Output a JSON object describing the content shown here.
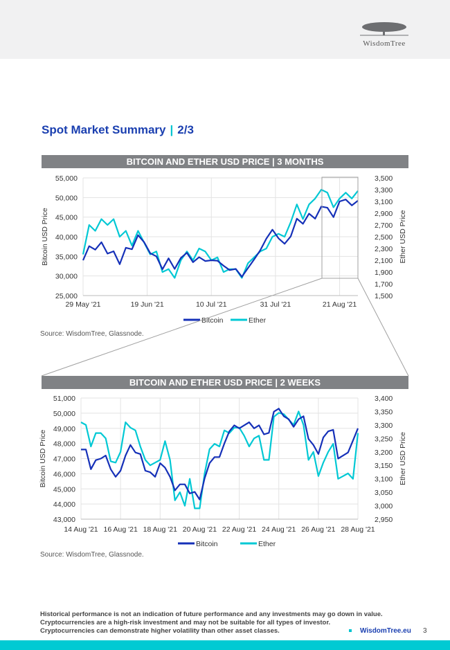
{
  "header": {
    "logo_text": "WisdomTree"
  },
  "page_title": {
    "main": "Spot Market Summary",
    "sep": "|",
    "part": "2/3"
  },
  "colors": {
    "bitcoin": "#1530b8",
    "ether": "#00c8d4",
    "accent": "#1a3fb0"
  },
  "chart_data": [
    {
      "type": "line",
      "title": "BITCOIN AND ETHER USD PRICE  |  3 MONTHS",
      "ylabel": "Bitcoin USD Price",
      "y2label": "Ether USD Price",
      "ylim": [
        25000,
        55000
      ],
      "y2lim": [
        1500,
        3500
      ],
      "yticks": [
        "55,000",
        "50,000",
        "45,000",
        "40,000",
        "35,000",
        "30,000",
        "25,000"
      ],
      "y2ticks": [
        "3,500",
        "3,300",
        "3,100",
        "2,900",
        "2,700",
        "2,500",
        "2,300",
        "2,100",
        "1,900",
        "1,700",
        "1,500"
      ],
      "xticks": [
        {
          "label": "29 May '21",
          "day": 0
        },
        {
          "label": "19 Jun '21",
          "day": 21
        },
        {
          "label": "10 Jul '21",
          "day": 42
        },
        {
          "label": "31 Jul '21",
          "day": 63
        },
        {
          "label": "21 Aug '21",
          "day": 84
        }
      ],
      "x_start": "29 May '21",
      "step_days": 2,
      "x_max_days": 90,
      "grid": true,
      "legend": "bottom",
      "series": [
        {
          "name": "Bitcoin",
          "axis": "left",
          "values": [
            34000,
            37600,
            36700,
            38600,
            35700,
            36300,
            33000,
            37200,
            36800,
            40400,
            38600,
            35800,
            35000,
            31700,
            34500,
            31800,
            34600,
            35900,
            33500,
            34800,
            33800,
            34000,
            33900,
            32600,
            31500,
            31800,
            29800,
            32000,
            34200,
            36500,
            39500,
            41800,
            39600,
            38200,
            40100,
            44600,
            43300,
            45900,
            44600,
            47700,
            47400,
            45000,
            49000,
            49500,
            48000,
            49200
          ]
        },
        {
          "name": "Ether",
          "axis": "right",
          "values": [
            2200,
            2700,
            2600,
            2800,
            2700,
            2800,
            2500,
            2600,
            2350,
            2600,
            2400,
            2200,
            2250,
            1900,
            1950,
            1800,
            2100,
            2250,
            2100,
            2300,
            2250,
            2100,
            2150,
            1900,
            1950,
            1950,
            1800,
            2050,
            2150,
            2250,
            2300,
            2500,
            2550,
            2500,
            2750,
            3050,
            2800,
            3050,
            3150,
            3300,
            3250,
            3000,
            3150,
            3250,
            3150,
            3280
          ]
        }
      ]
    },
    {
      "type": "line",
      "title": "BITCOIN AND ETHER USD PRICE  |  2 WEEKS",
      "ylabel": "Bitcoin USD Price",
      "y2label": "Ether USD Price",
      "ylim": [
        43000,
        51000
      ],
      "y2lim": [
        2950,
        3400
      ],
      "yticks": [
        "51,000",
        "50,000",
        "49,000",
        "48,000",
        "47,000",
        "46,000",
        "45,000",
        "44,000",
        "43,000"
      ],
      "y2ticks": [
        "3,400",
        "3,350",
        "3,300",
        "3,250",
        "3,200",
        "3,150",
        "3,100",
        "3,050",
        "3,000",
        "2,950"
      ],
      "xticks": [
        {
          "label": "14 Aug '21",
          "day": 0
        },
        {
          "label": "16 Aug '21",
          "day": 2
        },
        {
          "label": "18 Aug '21",
          "day": 4
        },
        {
          "label": "20 Aug '21",
          "day": 6
        },
        {
          "label": "22 Aug '21",
          "day": 8
        },
        {
          "label": "24 Aug '21",
          "day": 10
        },
        {
          "label": "26 Aug '21",
          "day": 12
        },
        {
          "label": "28 Aug '21",
          "day": 14
        }
      ],
      "x_start": "14 Aug '21",
      "step_days": 0.25,
      "x_max_days": 14,
      "grid": true,
      "legend": "bottom",
      "series": [
        {
          "name": "Bitcoin",
          "axis": "left",
          "values": [
            47600,
            47600,
            46300,
            46900,
            47000,
            47200,
            46300,
            45800,
            46200,
            47200,
            47900,
            47400,
            47300,
            46200,
            46100,
            45800,
            46700,
            46400,
            45800,
            44900,
            45300,
            45300,
            44700,
            44800,
            44300,
            45700,
            46700,
            47100,
            47100,
            48000,
            48800,
            49200,
            49000,
            49200,
            49400,
            49000,
            49200,
            48600,
            48700,
            50100,
            50300,
            49800,
            49600,
            49100,
            49600,
            49800,
            48300,
            47900,
            47300,
            48400,
            48800,
            48900,
            47000,
            47200,
            47400,
            48200,
            49000
          ]
        },
        {
          "name": "Ether",
          "axis": "right",
          "values": [
            3310,
            3300,
            3220,
            3270,
            3270,
            3250,
            3165,
            3160,
            3200,
            3310,
            3290,
            3280,
            3220,
            3170,
            3150,
            3160,
            3170,
            3240,
            3170,
            3020,
            3050,
            3000,
            3100,
            2990,
            2990,
            3120,
            3210,
            3230,
            3220,
            3280,
            3270,
            3290,
            3290,
            3260,
            3220,
            3250,
            3260,
            3170,
            3170,
            3330,
            3345,
            3340,
            3320,
            3300,
            3350,
            3300,
            3170,
            3200,
            3110,
            3160,
            3200,
            3230,
            3100,
            3110,
            3120,
            3100,
            3270
          ]
        }
      ]
    }
  ],
  "sources": [
    "Source: WisdomTree, Glassnode.",
    "Source: WisdomTree, Glassnode."
  ],
  "footer": {
    "lines": [
      "Historical performance is not an indication of future performance and any investments may go down in value.",
      "Cryptocurrencies are a high-risk investment and may not be suitable for all types of investor.",
      "Cryptocurrencies can demonstrate higher volatility than other asset classes."
    ],
    "link": "WisdomTree.eu",
    "page_number": "3"
  }
}
